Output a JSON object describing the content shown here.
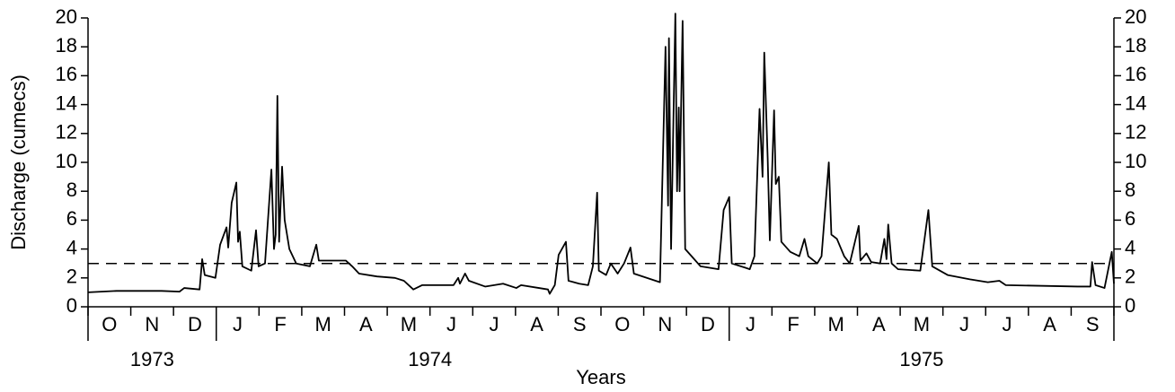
{
  "chart_data": {
    "type": "line",
    "y_label": "Discharge (cumecs)",
    "x_label": "Years",
    "x": [
      0,
      0.67,
      1.72,
      2.14,
      2.25,
      2.61,
      2.67,
      2.73,
      2.98,
      3.09,
      3.24,
      3.28,
      3.36,
      3.47,
      3.51,
      3.55,
      3.61,
      3.82,
      3.93,
      3.99,
      4.14,
      4.29,
      4.35,
      4.39,
      4.43,
      4.47,
      4.54,
      4.6,
      4.71,
      4.87,
      5.19,
      5.34,
      5.4,
      6.03,
      6.18,
      6.34,
      6.76,
      7.18,
      7.39,
      7.61,
      7.82,
      8.55,
      8.66,
      8.7,
      8.82,
      8.91,
      9.29,
      9.71,
      10.02,
      10.13,
      10.55,
      10.76,
      10.8,
      10.92,
      11.01,
      11.18,
      11.24,
      11.49,
      11.7,
      11.81,
      11.91,
      11.95,
      12.12,
      12.23,
      12.39,
      12.54,
      12.69,
      12.77,
      13.38,
      13.51,
      13.57,
      13.59,
      13.64,
      13.74,
      13.78,
      13.82,
      13.84,
      13.91,
      13.97,
      14.12,
      14.33,
      14.75,
      14.87,
      15,
      15.06,
      15.38,
      15.48,
      15.59,
      15.71,
      15.78,
      15.82,
      15.9,
      15.95,
      16.05,
      16.09,
      16.16,
      16.22,
      16.43,
      16.64,
      16.76,
      16.85,
      17.06,
      17.16,
      17.33,
      17.39,
      17.52,
      17.69,
      17.82,
      18.03,
      18.07,
      18.21,
      18.32,
      18.53,
      18.63,
      18.68,
      18.72,
      18.8,
      18.95,
      19.47,
      19.66,
      19.75,
      20.11,
      20.63,
      21.05,
      21.32,
      21.47,
      23.15,
      23.45,
      23.49,
      23.57,
      23.78,
      23.95,
      24
    ],
    "values": [
      1.0,
      1.1,
      1.1,
      1.05,
      1.3,
      1.2,
      3.3,
      2.2,
      2.0,
      4.3,
      5.5,
      4.1,
      7.2,
      8.6,
      4.5,
      5.2,
      2.8,
      2.5,
      5.3,
      2.8,
      3.0,
      9.5,
      4.0,
      5.0,
      14.6,
      4.5,
      9.7,
      6.0,
      4.0,
      3.0,
      2.8,
      4.3,
      3.2,
      3.2,
      2.8,
      2.3,
      2.1,
      2.0,
      1.8,
      1.2,
      1.5,
      1.5,
      2.0,
      1.6,
      2.3,
      1.8,
      1.4,
      1.6,
      1.3,
      1.5,
      1.3,
      1.2,
      0.9,
      1.5,
      3.6,
      4.5,
      1.8,
      1.6,
      1.5,
      2.8,
      7.9,
      2.5,
      2.2,
      3.0,
      2.3,
      3.0,
      4.1,
      2.3,
      1.7,
      18.0,
      7.0,
      18.6,
      4.0,
      20.3,
      8.0,
      13.8,
      8.0,
      19.8,
      4.0,
      3.5,
      2.8,
      2.6,
      6.7,
      7.6,
      3.0,
      2.7,
      2.6,
      3.5,
      13.7,
      9.0,
      17.6,
      10.3,
      4.6,
      13.6,
      8.5,
      9.0,
      4.5,
      3.8,
      3.5,
      4.7,
      3.5,
      3.0,
      3.5,
      10.0,
      5.0,
      4.7,
      3.5,
      3.0,
      5.6,
      3.2,
      3.7,
      3.1,
      3.0,
      4.7,
      3.3,
      5.7,
      3.0,
      2.6,
      2.5,
      6.7,
      2.8,
      2.2,
      1.9,
      1.7,
      1.8,
      1.5,
      1.4,
      1.4,
      3.1,
      1.5,
      1.3,
      3.8,
      1.6
    ],
    "color": "#000000",
    "xlim": [
      0,
      24
    ],
    "ylim": [
      0,
      20
    ],
    "yticks": [
      0,
      2,
      4,
      6,
      8,
      10,
      12,
      14,
      16,
      18,
      20
    ],
    "right_axis": true,
    "xticks": [
      {
        "value": 0.5,
        "label": "O"
      },
      {
        "value": 1.5,
        "label": "N"
      },
      {
        "value": 2.5,
        "label": "D"
      },
      {
        "value": 3.5,
        "label": "J"
      },
      {
        "value": 4.5,
        "label": "F"
      },
      {
        "value": 5.5,
        "label": "M"
      },
      {
        "value": 6.5,
        "label": "A"
      },
      {
        "value": 7.5,
        "label": "M"
      },
      {
        "value": 8.5,
        "label": "J"
      },
      {
        "value": 9.5,
        "label": "J"
      },
      {
        "value": 10.5,
        "label": "A"
      },
      {
        "value": 11.5,
        "label": "S"
      },
      {
        "value": 12.5,
        "label": "O"
      },
      {
        "value": 13.5,
        "label": "N"
      },
      {
        "value": 14.5,
        "label": "D"
      },
      {
        "value": 15.5,
        "label": "J"
      },
      {
        "value": 16.5,
        "label": "F"
      },
      {
        "value": 17.5,
        "label": "M"
      },
      {
        "value": 18.5,
        "label": "A"
      },
      {
        "value": 19.5,
        "label": "M"
      },
      {
        "value": 20.5,
        "label": "J"
      },
      {
        "value": 21.5,
        "label": "J"
      },
      {
        "value": 22.5,
        "label": "A"
      },
      {
        "value": 23.5,
        "label": "S"
      }
    ],
    "month_boundaries": [
      0,
      1,
      2,
      3,
      4,
      5,
      6,
      7,
      8,
      9,
      10,
      11,
      12,
      13,
      14,
      15,
      16,
      17,
      18,
      19,
      20,
      21,
      22,
      23,
      24
    ],
    "year_boundaries": [
      3,
      15
    ],
    "year_labels": [
      {
        "value": 1.5,
        "label": "1973"
      },
      {
        "value": 8,
        "label": "1974"
      },
      {
        "value": 19.5,
        "label": "1975"
      }
    ],
    "reference_line": 3
  }
}
